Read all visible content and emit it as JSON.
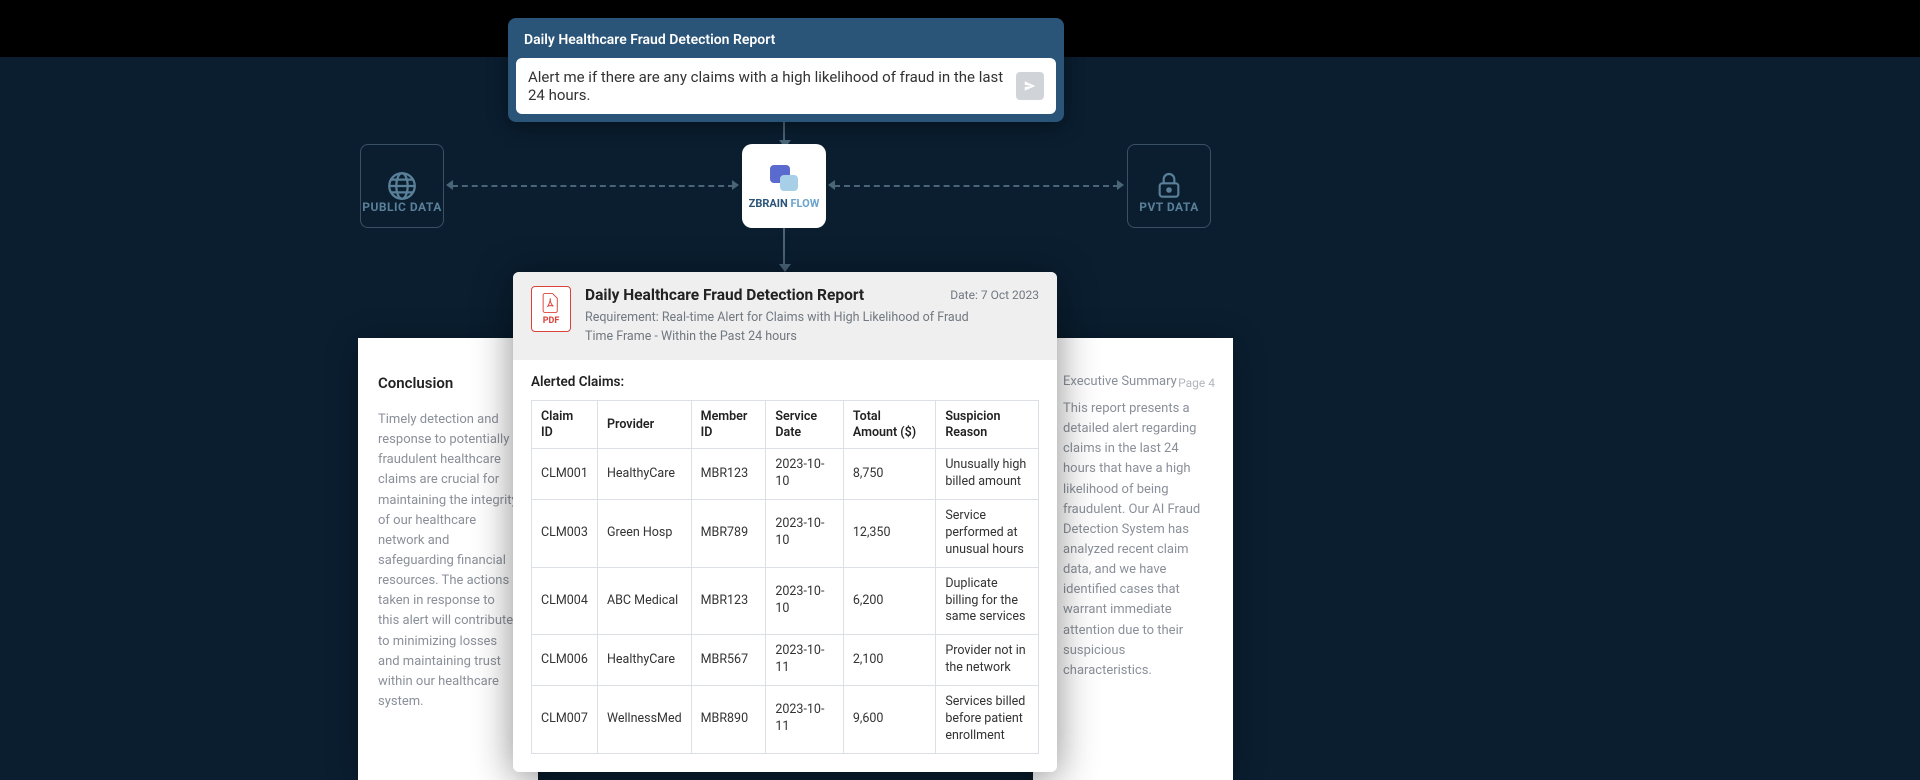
{
  "colors": {
    "bg": "#0a1e30",
    "card": "#2a5478",
    "connector": "#4a6478",
    "muted_blue": "#5a8099",
    "light_blue": "#6aa3cc",
    "text_muted": "#8a9099",
    "border": "#dcdfe3",
    "pdf_red": "#d9433a",
    "header_grey": "#efefef"
  },
  "prompt": {
    "title": "Daily Healthcare Fraud Detection Report",
    "text": "Alert me if there are any claims with a high likelihood of fraud in the last 24 hours."
  },
  "nodes": {
    "left_label": "PUBLIC DATA",
    "right_label": "PVT DATA",
    "center_brand_a": "ZBRAIN",
    "center_brand_b": " FLOW"
  },
  "left_page": {
    "heading": "Conclusion",
    "body": "Timely detection and response to potentially fraudulent healthcare claims are crucial for maintaining the integrity of our healthcare network and safeguarding financial resources. The actions taken in response to this alert will contribute to minimizing losses and maintaining trust within our healthcare system."
  },
  "right_page": {
    "page_num": "Page 4",
    "summary_label": "Executive Summary",
    "body": "This report presents a detailed alert regarding claims in the last 24 hours that have a high likelihood of being fraudulent. Our AI Fraud Detection System has analyzed recent claim data, and we have identified cases that warrant immediate attention due to their suspicious characteristics."
  },
  "report": {
    "pdf_label": "PDF",
    "title": "Daily Healthcare Fraud Detection Report",
    "date_label": "Date: 7 Oct 2023",
    "requirement": "Requirement: Real-time Alert for Claims with High Likelihood of Fraud",
    "timeframe": "Time Frame - Within the Past 24 hours",
    "section_label": "Alerted Claims:",
    "columns": [
      "Claim ID",
      "Provider",
      "Member ID",
      "Service Date",
      "Total Amount ($)",
      "Suspicion Reason"
    ],
    "rows": [
      {
        "id": "CLM001",
        "provider": "HealthyCare",
        "member": "MBR123",
        "date": "2023-10-10",
        "amount": "8,750",
        "reason": "Unusually high billed amount"
      },
      {
        "id": "CLM003",
        "provider": "Green Hosp",
        "member": "MBR789",
        "date": "2023-10-10",
        "amount": "12,350",
        "reason": "Service performed at unusual hours"
      },
      {
        "id": "CLM004",
        "provider": "ABC Medical",
        "member": "MBR123",
        "date": "2023-10-10",
        "amount": "6,200",
        "reason": "Duplicate billing for the same services"
      },
      {
        "id": "CLM006",
        "provider": "HealthyCare",
        "member": "MBR567",
        "date": "2023-10-11",
        "amount": "2,100",
        "reason": "Provider not in the network"
      },
      {
        "id": "CLM007",
        "provider": "WellnessMed",
        "member": "MBR890",
        "date": "2023-10-11",
        "amount": "9,600",
        "reason": "Services billed before patient enrollment"
      }
    ]
  }
}
